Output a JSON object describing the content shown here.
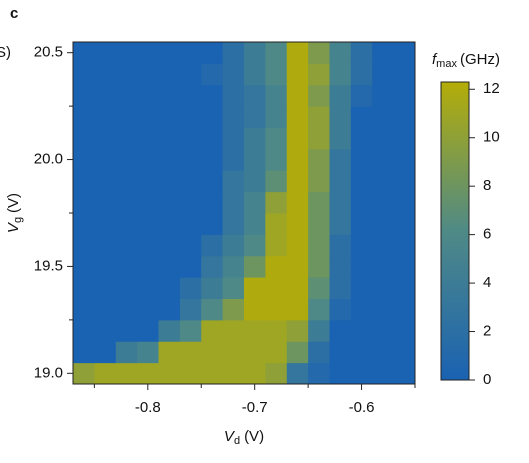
{
  "chart_data": {
    "type": "heatmap",
    "panel_label": "c",
    "cut_text": "S)",
    "x_label": {
      "symbol": "V",
      "subscript": "d",
      "unit": "(V)"
    },
    "y_label": {
      "symbol": "V",
      "subscript": "g",
      "unit": "(V)"
    },
    "colorbar_label": {
      "symbol": "f",
      "subscript": "max",
      "unit": "(GHz)"
    },
    "x": [
      -0.86,
      -0.84,
      -0.82,
      -0.8,
      -0.78,
      -0.76,
      -0.74,
      -0.72,
      -0.7,
      -0.68,
      -0.66,
      -0.64,
      -0.62,
      -0.6,
      -0.58,
      -0.56
    ],
    "y": [
      19.0,
      19.1,
      19.2,
      19.3,
      19.4,
      19.5,
      19.6,
      19.7,
      19.8,
      19.9,
      20.0,
      20.1,
      20.2,
      20.3,
      20.4,
      20.5
    ],
    "z": [
      [
        10,
        11,
        11,
        11,
        11,
        11,
        11,
        11,
        11,
        10,
        3,
        1,
        0,
        0,
        0,
        0
      ],
      [
        0,
        0,
        4,
        5,
        11,
        11,
        11,
        11,
        11,
        11,
        8,
        2,
        0,
        0,
        0,
        0
      ],
      [
        0,
        0,
        0,
        0,
        4,
        6,
        11,
        11,
        11,
        11,
        10,
        4,
        0,
        0,
        0,
        0
      ],
      [
        0,
        0,
        0,
        0,
        0,
        3,
        6,
        9,
        12,
        12,
        12,
        6,
        1,
        0,
        0,
        0
      ],
      [
        0,
        0,
        0,
        0,
        0,
        2,
        4,
        6,
        12,
        12,
        12,
        7,
        2,
        0,
        0,
        0
      ],
      [
        0,
        0,
        0,
        0,
        0,
        0,
        3,
        5,
        8,
        12,
        12,
        8,
        2,
        0,
        0,
        0
      ],
      [
        0,
        0,
        0,
        0,
        0,
        0,
        2,
        4,
        6,
        11,
        12,
        8,
        2,
        0,
        0,
        0
      ],
      [
        0,
        0,
        0,
        0,
        0,
        0,
        0,
        3,
        5,
        11,
        12,
        8,
        3,
        0,
        0,
        0
      ],
      [
        0,
        0,
        0,
        0,
        0,
        0,
        0,
        3,
        5,
        10,
        12,
        8,
        3,
        0,
        0,
        0
      ],
      [
        0,
        0,
        0,
        0,
        0,
        0,
        0,
        3,
        4,
        7,
        12,
        9,
        3,
        0,
        0,
        0
      ],
      [
        0,
        0,
        0,
        0,
        0,
        0,
        0,
        2,
        4,
        6,
        12,
        9,
        3,
        0,
        0,
        0
      ],
      [
        0,
        0,
        0,
        0,
        0,
        0,
        0,
        2,
        4,
        6,
        12,
        10,
        4,
        0,
        0,
        0
      ],
      [
        0,
        0,
        0,
        0,
        0,
        0,
        0,
        2,
        3,
        5,
        12,
        10,
        4,
        0,
        0,
        0
      ],
      [
        0,
        0,
        0,
        0,
        0,
        0,
        0,
        2,
        3,
        5,
        12,
        9,
        4,
        1,
        0,
        0
      ],
      [
        0,
        0,
        0,
        0,
        0,
        0,
        1,
        2,
        4,
        6,
        12,
        10,
        5,
        2,
        0,
        0
      ],
      [
        0,
        0,
        0,
        0,
        0,
        0,
        0,
        2,
        4,
        6,
        12,
        9,
        5,
        2,
        0,
        0
      ]
    ],
    "xlim": [
      -0.87,
      -0.55
    ],
    "ylim": [
      18.95,
      20.55
    ],
    "xticks": [
      -0.8,
      -0.7,
      -0.6
    ],
    "xminorticks": [
      -0.85,
      -0.75,
      -0.65,
      -0.55
    ],
    "yticks": [
      {
        "value": 19.0,
        "label": "19.0"
      },
      19.5,
      {
        "value": 20.0,
        "label": "20.0"
      },
      20.5
    ],
    "yminorticks": [
      19.25,
      19.75,
      20.25
    ],
    "zlim": [
      0,
      12.3
    ],
    "zticks": [
      0,
      2,
      4,
      6,
      8,
      10,
      12
    ],
    "colormap": [
      "#1a62b2",
      "#4f8a86",
      "#b4ad08"
    ]
  }
}
